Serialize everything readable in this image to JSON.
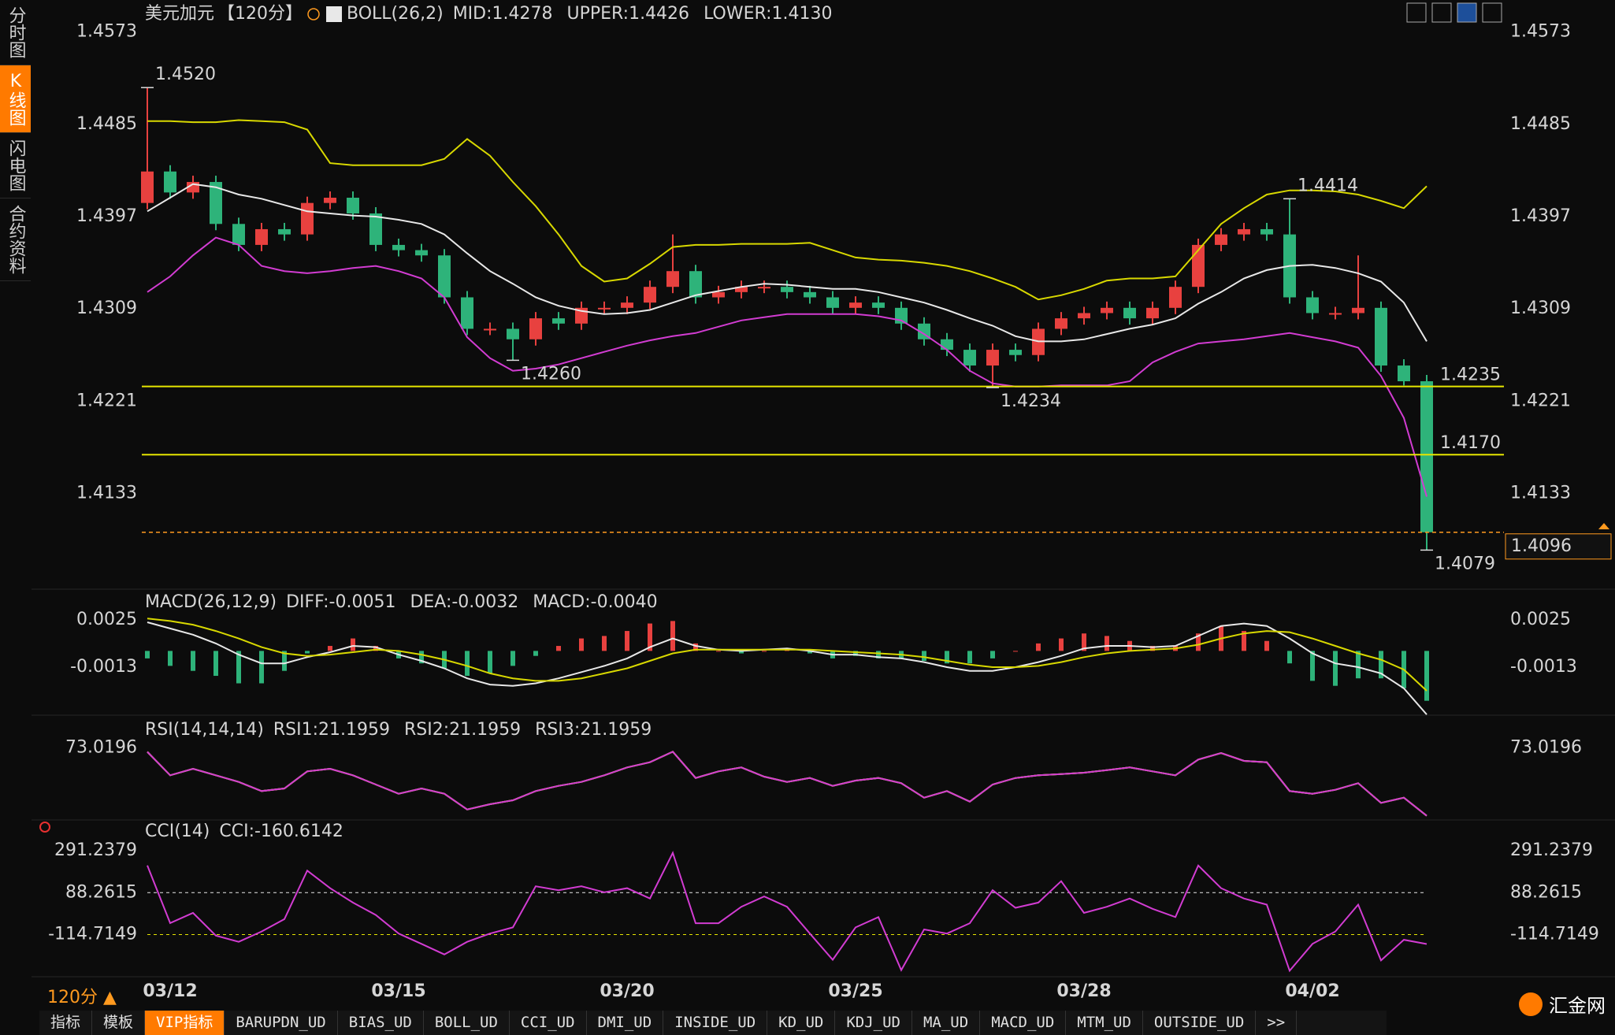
{
  "ui": {
    "sidebar_tabs": [
      "分时图",
      "K线图",
      "闪电图",
      "合约资料"
    ],
    "sidebar_active": 1,
    "period_menu": "120分 ▲",
    "bottom_tabs": [
      "指标",
      "模板",
      "VIP指标",
      "BARUPDN_UD",
      "BIAS_UD",
      "BOLL_UD",
      "CCI_UD",
      "DMI_UD",
      "INSIDE_UD",
      "KD_UD",
      "KDJ_UD",
      "MA_UD",
      "MACD_UD",
      "MTM_UD",
      "OUTSIDE_UD",
      ">>"
    ],
    "bottom_active": 2,
    "logo": "汇金网"
  },
  "chart_data": [
    {
      "type": "candlestick",
      "title": "美元加元",
      "title_color": "#e8e8e8",
      "period": "【120分】",
      "period_color": "#ff9a1f",
      "indicator": "BOLL(26,2)",
      "header_color": "#e8e8e8",
      "categories": [
        null,
        "03/12",
        null,
        null,
        null,
        null,
        null,
        null,
        null,
        null,
        null,
        "03/15",
        null,
        null,
        null,
        null,
        null,
        null,
        null,
        null,
        null,
        "03/20",
        null,
        null,
        null,
        null,
        null,
        null,
        null,
        null,
        null,
        "03/25",
        null,
        null,
        null,
        null,
        null,
        null,
        null,
        null,
        null,
        "03/28",
        null,
        null,
        null,
        null,
        null,
        null,
        null,
        null,
        null,
        "04/02",
        null,
        null,
        null,
        null,
        null
      ],
      "open": [
        1.441,
        1.444,
        1.442,
        1.443,
        1.439,
        1.437,
        1.4385,
        1.438,
        1.441,
        1.4415,
        1.44,
        1.437,
        1.4365,
        1.436,
        1.432,
        1.429,
        1.429,
        1.428,
        1.43,
        1.4295,
        1.431,
        1.431,
        1.4315,
        1.433,
        1.4345,
        1.432,
        1.4325,
        1.433,
        1.433,
        1.4325,
        1.432,
        1.431,
        1.4315,
        1.431,
        1.4295,
        1.428,
        1.427,
        1.4255,
        1.427,
        1.4265,
        1.429,
        1.43,
        1.4305,
        1.431,
        1.43,
        1.431,
        1.433,
        1.437,
        1.438,
        1.4385,
        1.438,
        1.432,
        1.4305,
        1.4305,
        1.431,
        1.4255,
        1.424
      ],
      "high": [
        1.452,
        1.4446,
        1.4436,
        1.4436,
        1.4396,
        1.4391,
        1.4391,
        1.4416,
        1.4421,
        1.4421,
        1.4406,
        1.4376,
        1.4371,
        1.4366,
        1.4326,
        1.4296,
        1.4296,
        1.4306,
        1.4306,
        1.4316,
        1.4316,
        1.4321,
        1.4336,
        1.438,
        1.4351,
        1.4331,
        1.4336,
        1.4336,
        1.4336,
        1.4331,
        1.4326,
        1.4321,
        1.4321,
        1.4316,
        1.4301,
        1.4286,
        1.4276,
        1.4276,
        1.4276,
        1.4296,
        1.4306,
        1.4311,
        1.4316,
        1.4316,
        1.4316,
        1.4336,
        1.4376,
        1.4386,
        1.4391,
        1.4391,
        1.4414,
        1.4326,
        1.4311,
        1.436,
        1.4316,
        1.4261,
        1.4246
      ],
      "low": [
        1.4404,
        1.4414,
        1.4414,
        1.4384,
        1.4364,
        1.4364,
        1.4374,
        1.4374,
        1.4404,
        1.4394,
        1.4364,
        1.4359,
        1.4354,
        1.4314,
        1.4284,
        1.4284,
        1.426,
        1.4274,
        1.4289,
        1.4289,
        1.4304,
        1.4304,
        1.4309,
        1.4324,
        1.4314,
        1.4314,
        1.4319,
        1.4324,
        1.4319,
        1.4314,
        1.4304,
        1.4304,
        1.4304,
        1.4289,
        1.4274,
        1.4264,
        1.4249,
        1.4234,
        1.4259,
        1.4259,
        1.4284,
        1.4294,
        1.4299,
        1.4294,
        1.4294,
        1.4304,
        1.4324,
        1.4364,
        1.4374,
        1.4374,
        1.4314,
        1.4299,
        1.4299,
        1.4299,
        1.4249,
        1.4236,
        1.4079
      ],
      "close": [
        1.444,
        1.442,
        1.443,
        1.439,
        1.437,
        1.4385,
        1.438,
        1.441,
        1.4415,
        1.44,
        1.437,
        1.4365,
        1.436,
        1.432,
        1.429,
        1.429,
        1.428,
        1.43,
        1.4295,
        1.431,
        1.431,
        1.4315,
        1.433,
        1.4345,
        1.432,
        1.4325,
        1.433,
        1.433,
        1.4325,
        1.432,
        1.431,
        1.4315,
        1.431,
        1.4295,
        1.428,
        1.427,
        1.4255,
        1.427,
        1.4265,
        1.429,
        1.43,
        1.4305,
        1.431,
        1.43,
        1.431,
        1.433,
        1.437,
        1.438,
        1.4385,
        1.438,
        1.432,
        1.4305,
        1.4305,
        1.431,
        1.4255,
        1.424,
        1.4096
      ],
      "up_color": "#e8413f",
      "down_color": "#2eb37a",
      "series": [
        {
          "name": "MID:1.4278",
          "color": "#e8e8e8",
          "values": [
            1.4402,
            1.4415,
            1.4428,
            1.4425,
            1.4418,
            1.4414,
            1.4408,
            1.4402,
            1.44,
            1.4398,
            1.4397,
            1.4394,
            1.439,
            1.438,
            1.4362,
            1.4345,
            1.4333,
            1.432,
            1.4312,
            1.4307,
            1.4304,
            1.4305,
            1.4308,
            1.4315,
            1.4322,
            1.4326,
            1.433,
            1.4333,
            1.4332,
            1.433,
            1.4328,
            1.4328,
            1.4325,
            1.432,
            1.4315,
            1.4308,
            1.43,
            1.4293,
            1.4283,
            1.4278,
            1.4278,
            1.428,
            1.4285,
            1.429,
            1.4294,
            1.43,
            1.4314,
            1.4325,
            1.4338,
            1.4346,
            1.435,
            1.4351,
            1.4348,
            1.4343,
            1.4335,
            1.4315,
            1.4278
          ]
        },
        {
          "name": "UPPER:1.4426",
          "color": "#d8d800",
          "values": [
            1.4488,
            1.4488,
            1.4487,
            1.4487,
            1.4489,
            1.4488,
            1.4487,
            1.448,
            1.4448,
            1.4446,
            1.4446,
            1.4446,
            1.4446,
            1.4452,
            1.4471,
            1.4455,
            1.443,
            1.4407,
            1.438,
            1.435,
            1.4335,
            1.4338,
            1.4352,
            1.4368,
            1.437,
            1.437,
            1.4371,
            1.4371,
            1.4371,
            1.4372,
            1.4365,
            1.4358,
            1.4356,
            1.4355,
            1.4353,
            1.435,
            1.4345,
            1.4338,
            1.433,
            1.4318,
            1.4322,
            1.4328,
            1.4336,
            1.4338,
            1.4338,
            1.434,
            1.4365,
            1.439,
            1.4405,
            1.4418,
            1.4422,
            1.4422,
            1.4421,
            1.4418,
            1.4412,
            1.4405,
            1.4426
          ]
        },
        {
          "name": "LOWER:1.4130",
          "color": "#d23cd2",
          "values": [
            1.4325,
            1.434,
            1.436,
            1.4377,
            1.437,
            1.435,
            1.4345,
            1.4343,
            1.4345,
            1.4348,
            1.435,
            1.4345,
            1.4338,
            1.432,
            1.4282,
            1.4262,
            1.425,
            1.4252,
            1.4256,
            1.4262,
            1.4268,
            1.4274,
            1.4279,
            1.4283,
            1.4286,
            1.4292,
            1.4298,
            1.4301,
            1.4304,
            1.4304,
            1.4304,
            1.4304,
            1.4302,
            1.4298,
            1.4285,
            1.427,
            1.425,
            1.4238,
            1.4235,
            1.4235,
            1.4236,
            1.4236,
            1.4236,
            1.424,
            1.4258,
            1.4268,
            1.4276,
            1.4278,
            1.428,
            1.4283,
            1.4286,
            1.4282,
            1.4278,
            1.4272,
            1.4245,
            1.4205,
            1.413
          ]
        }
      ],
      "levels": [
        {
          "value": 1.4235,
          "label": "1.4235"
        },
        {
          "value": 1.417,
          "label": "1.4170"
        }
      ],
      "level_color": "#e6e600",
      "last": {
        "value": 1.4096,
        "label": "1.4096"
      },
      "last_color": "#ff9a1f",
      "annotations": [
        {
          "value": 1.452,
          "label": "1.4520"
        },
        {
          "value": 1.426,
          "label": "1.4260"
        },
        {
          "value": 1.4234,
          "label": "1.4234"
        },
        {
          "value": 1.4414,
          "label": "1.4414"
        },
        {
          "value": 1.4079,
          "label": "1.4079"
        }
      ],
      "ylim": [
        1.4044,
        1.4596
      ],
      "yticks": [
        1.4573,
        1.4485,
        1.4397,
        1.4309,
        1.4221,
        1.4133
      ]
    },
    {
      "type": "macd",
      "indicator": "MACD(26,12,9)",
      "header_color": "#e8e8e8",
      "up_color": "#e8413f",
      "down_color": "#2eb37a",
      "series": [
        {
          "name": "DIFF:-0.0051",
          "color": "#e8e8e8",
          "values": [
            0.0023,
            0.0018,
            0.0013,
            0.0006,
            -0.0003,
            -0.001,
            -0.001,
            -0.0005,
            -0.0001,
            0.0004,
            0.0003,
            -0.0003,
            -0.0008,
            -0.0014,
            -0.0022,
            -0.0027,
            -0.0028,
            -0.0026,
            -0.0022,
            -0.0017,
            -0.0012,
            -0.0006,
            0.0003,
            0.001,
            0.0004,
            0.0001,
            0.0,
            0.0001,
            0.0002,
            0.0,
            -0.0003,
            -0.0003,
            -0.0005,
            -0.0006,
            -0.0009,
            -0.0013,
            -0.0016,
            -0.0016,
            -0.0013,
            -0.0009,
            -0.0004,
            0.0002,
            0.0004,
            0.0004,
            0.0003,
            0.0004,
            0.0012,
            0.002,
            0.0022,
            0.002,
            0.001,
            -0.0002,
            -0.001,
            -0.0013,
            -0.0018,
            -0.003,
            -0.0051
          ]
        },
        {
          "name": "DEA:-0.0032",
          "color": "#d8d800",
          "values": [
            0.0026,
            0.0024,
            0.0021,
            0.0016,
            0.001,
            0.0003,
            -0.0002,
            -0.0004,
            -0.0003,
            -0.0001,
            0.0001,
            0.0,
            -0.0003,
            -0.0007,
            -0.0012,
            -0.0018,
            -0.0022,
            -0.0024,
            -0.0024,
            -0.0022,
            -0.0018,
            -0.0014,
            -0.0008,
            -0.0002,
            0.0001,
            0.0001,
            0.0001,
            0.0001,
            0.0001,
            0.0001,
            0.0,
            -0.0001,
            -0.0002,
            -0.0003,
            -0.0005,
            -0.0008,
            -0.0011,
            -0.0013,
            -0.0013,
            -0.0012,
            -0.0009,
            -0.0005,
            -0.0002,
            0.0,
            0.0001,
            0.0002,
            0.0005,
            0.001,
            0.0014,
            0.0016,
            0.0015,
            0.001,
            0.0004,
            -0.0002,
            -0.0007,
            -0.0015,
            -0.0032
          ]
        },
        {
          "name": "MACD:-0.0040",
          "color": "#d23cd2",
          "style": "bar",
          "values": [
            -0.0006,
            -0.0012,
            -0.0016,
            -0.002,
            -0.0026,
            -0.0026,
            -0.0016,
            -0.0002,
            0.0004,
            0.001,
            0.0004,
            -0.0006,
            -0.001,
            -0.0014,
            -0.002,
            -0.0018,
            -0.0012,
            -0.0004,
            0.0004,
            0.001,
            0.0012,
            0.0016,
            0.0022,
            0.0024,
            0.0006,
            0.0,
            -0.0002,
            0.0,
            0.0002,
            -0.0002,
            -0.0006,
            -0.0004,
            -0.0006,
            -0.0006,
            -0.0008,
            -0.001,
            -0.001,
            -0.0006,
            0.0,
            0.0006,
            0.001,
            0.0014,
            0.0012,
            0.0008,
            0.0004,
            0.0004,
            0.0014,
            0.002,
            0.0016,
            0.0008,
            -0.001,
            -0.0024,
            -0.0028,
            -0.0022,
            -0.0022,
            -0.003,
            -0.004
          ]
        }
      ],
      "ylim": [
        -0.0056,
        0.0047
      ],
      "yticks": [
        0.0025,
        -0.0013
      ]
    },
    {
      "type": "line",
      "indicator": "RSI(14,14,14)",
      "header_color": "#e8e8e8",
      "series": [
        {
          "name": "RSI1:21.1959",
          "color": "#e8e8e8",
          "values": [
            69.9,
            52,
            57,
            52,
            47,
            40,
            42,
            55,
            57,
            52,
            45,
            38,
            42,
            38,
            26,
            30,
            33,
            40,
            44,
            47,
            52,
            58,
            62,
            70,
            50,
            55,
            58,
            51,
            47,
            50,
            44,
            48,
            50,
            46,
            35,
            40,
            32,
            45,
            50,
            52,
            53,
            54,
            56,
            58,
            55,
            52,
            64,
            69,
            63,
            62,
            40,
            38,
            41,
            46,
            31,
            35,
            21.1959
          ]
        },
        {
          "name": "RSI2:21.1959",
          "color": "#d8d800",
          "values": [
            69.9,
            52,
            57,
            52,
            47,
            40,
            42,
            55,
            57,
            52,
            45,
            38,
            42,
            38,
            26,
            30,
            33,
            40,
            44,
            47,
            52,
            58,
            62,
            70,
            50,
            55,
            58,
            51,
            47,
            50,
            44,
            48,
            50,
            46,
            35,
            40,
            32,
            45,
            50,
            52,
            53,
            54,
            56,
            58,
            55,
            52,
            64,
            69,
            63,
            62,
            40,
            38,
            41,
            46,
            31,
            35,
            21.1959
          ]
        },
        {
          "name": "RSI3:21.1959",
          "color": "#d23cd2",
          "values": [
            69.9,
            52,
            57,
            52,
            47,
            40,
            42,
            55,
            57,
            52,
            45,
            38,
            42,
            38,
            26,
            30,
            33,
            40,
            44,
            47,
            52,
            58,
            62,
            70,
            50,
            55,
            58,
            51,
            47,
            50,
            44,
            48,
            50,
            46,
            35,
            40,
            32,
            45,
            50,
            52,
            53,
            54,
            56,
            58,
            55,
            52,
            64,
            69,
            63,
            62,
            40,
            38,
            41,
            46,
            31,
            35,
            21.1959
          ]
        }
      ],
      "ylim": [
        15,
        78
      ],
      "yticks": [
        73.0196
      ]
    },
    {
      "type": "line",
      "indicator": "CCI(14)",
      "header_color": "#e8e8e8",
      "series": [
        {
          "name": "CCI:-160.6142",
          "color": "#d23cd2",
          "values": [
            220,
            -59,
            -10,
            -120,
            -150,
            -100,
            -40,
            195,
            110,
            40,
            -20,
            -110,
            -160,
            -211,
            -150,
            -110,
            -80,
            119,
            100,
            119,
            90,
            110,
            60,
            281,
            -60,
            -60,
            20,
            70,
            20,
            -110,
            -237,
            -80,
            -30,
            -287,
            -90,
            -110,
            -60,
            100,
            15,
            40,
            144,
            -10,
            20,
            60,
            10,
            -30,
            220,
            110,
            60,
            30,
            -290,
            -160,
            -100,
            30,
            -240,
            -140,
            -160.6142
          ]
        }
      ],
      "ylim": [
        -300,
        345
      ],
      "yticks": [
        291.2379,
        88.2615,
        -114.7149
      ],
      "tick_line_colors": [
        null,
        "#e8e8e8",
        "#e6e600"
      ]
    }
  ]
}
